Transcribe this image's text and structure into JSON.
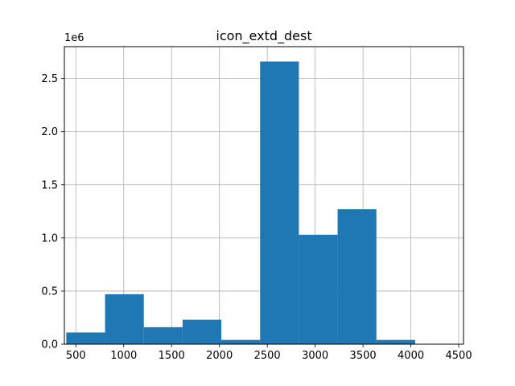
{
  "chart_data": {
    "type": "bar",
    "title": "icon_extd_dest",
    "y_offset_label": "1e6",
    "xlabel": "",
    "ylabel": "",
    "xlim": [
      380,
      4550
    ],
    "ylim": [
      0,
      2.8
    ],
    "x_ticks": [
      500,
      1000,
      1500,
      2000,
      2500,
      3000,
      3500,
      4000,
      4500
    ],
    "y_ticks": [
      0.0,
      0.5,
      1.0,
      1.5,
      2.0,
      2.5
    ],
    "x_tick_labels": [
      "500",
      "1000",
      "1500",
      "2000",
      "2500",
      "3000",
      "3500",
      "4000",
      "4500"
    ],
    "y_tick_labels": [
      "0.0",
      "0.5",
      "1.0",
      "1.5",
      "2.0",
      "2.5"
    ],
    "grid": true,
    "bin_edges": [
      400,
      805,
      1210,
      1615,
      2020,
      2425,
      2830,
      3235,
      3640,
      4045,
      4450
    ],
    "values": [
      0.11,
      0.47,
      0.16,
      0.23,
      0.04,
      2.66,
      1.03,
      1.27,
      0.04,
      0.0
    ],
    "bar_color": "#1f77b4"
  }
}
